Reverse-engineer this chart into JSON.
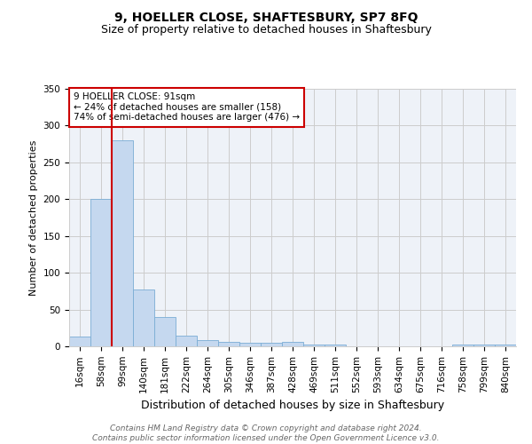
{
  "title1": "9, HOELLER CLOSE, SHAFTESBURY, SP7 8FQ",
  "title2": "Size of property relative to detached houses in Shaftesbury",
  "xlabel": "Distribution of detached houses by size in Shaftesbury",
  "ylabel": "Number of detached properties",
  "footnote": "Contains HM Land Registry data © Crown copyright and database right 2024.\nContains public sector information licensed under the Open Government Licence v3.0.",
  "bin_labels": [
    "16sqm",
    "58sqm",
    "99sqm",
    "140sqm",
    "181sqm",
    "222sqm",
    "264sqm",
    "305sqm",
    "346sqm",
    "387sqm",
    "428sqm",
    "469sqm",
    "511sqm",
    "552sqm",
    "593sqm",
    "634sqm",
    "675sqm",
    "716sqm",
    "758sqm",
    "799sqm",
    "840sqm"
  ],
  "bar_heights": [
    13,
    200,
    280,
    77,
    40,
    14,
    9,
    6,
    5,
    5,
    6,
    3,
    2,
    0,
    0,
    0,
    0,
    0,
    2,
    2,
    2
  ],
  "bar_color": "#c5d8ef",
  "bar_edge_color": "#7aadd4",
  "vline_x": 1.5,
  "vline_color": "#cc0000",
  "annotation_lines": [
    "9 HOELLER CLOSE: 91sqm",
    "← 24% of detached houses are smaller (158)",
    "74% of semi-detached houses are larger (476) →"
  ],
  "annotation_box_color": "#cc0000",
  "ylim": [
    0,
    350
  ],
  "yticks": [
    0,
    50,
    100,
    150,
    200,
    250,
    300,
    350
  ],
  "grid_color": "#cccccc",
  "background_color": "#eef2f8",
  "title1_fontsize": 10,
  "title2_fontsize": 9,
  "xlabel_fontsize": 9,
  "ylabel_fontsize": 8,
  "tick_fontsize": 7.5,
  "annotation_fontsize": 7.5,
  "footnote_fontsize": 6.5
}
